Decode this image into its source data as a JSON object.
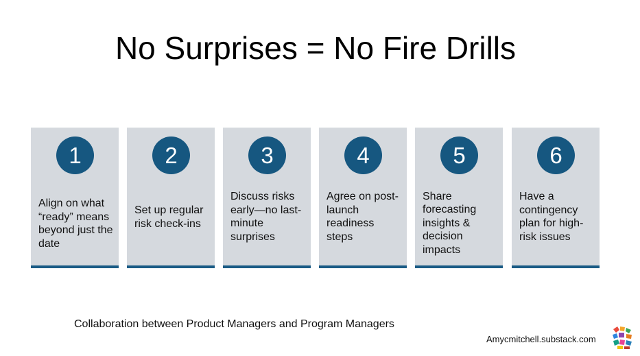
{
  "slide": {
    "title": "No Surprises = No Fire Drills",
    "subtitle": "Collaboration between Product Managers and Program Managers",
    "attribution": "Amycmitchell.substack.com"
  },
  "steps": [
    {
      "number": "1",
      "text": "Align on what “ready” means beyond just the date"
    },
    {
      "number": "2",
      "text": "Set up regular risk check-ins"
    },
    {
      "number": "3",
      "text": "Discuss risks early—no last-minute surprises"
    },
    {
      "number": "4",
      "text": "Agree on post-launch readiness steps"
    },
    {
      "number": "5",
      "text": "Share forecasting insights & decision impacts"
    },
    {
      "number": "6",
      "text": "Have a contingency plan for high-risk issues"
    }
  ],
  "colors": {
    "card_background": "#d5d9de",
    "card_accent": "#1a5b85",
    "badge": "#165780"
  },
  "logo": {
    "icon": "colorful-hands-logo-icon"
  }
}
